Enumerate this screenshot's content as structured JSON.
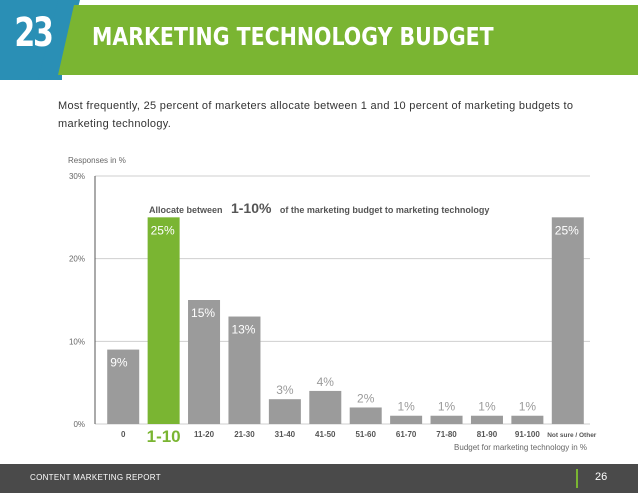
{
  "header": {
    "number": "23",
    "title": "MARKETING TECHNOLOGY BUDGET"
  },
  "subtitle": "Most frequently, 25 percent of marketers allocate between 1 and 10 percent of marketing budgets to marketing technology.",
  "colors": {
    "accent_green": "#7ab532",
    "accent_blue": "#2a8fb5",
    "bar_gray": "#9b9b9b"
  },
  "chart_data": {
    "type": "bar",
    "ylabel": "Responses in %",
    "xlabel": "Budget for marketing technology in %",
    "ylim": [
      0,
      30
    ],
    "yticks": [
      0,
      10,
      20,
      30
    ],
    "ytick_labels": [
      "0%",
      "10%",
      "20%",
      "30%"
    ],
    "categories": [
      "0",
      "1-10",
      "11-20",
      "21-30",
      "31-40",
      "41-50",
      "51-60",
      "61-70",
      "71-80",
      "81-90",
      "91-100",
      "Not sure / Other"
    ],
    "values": [
      9,
      25,
      15,
      13,
      3,
      4,
      2,
      1,
      1,
      1,
      1,
      25
    ],
    "value_labels": [
      "9%",
      "25%",
      "15%",
      "13%",
      "3%",
      "4%",
      "2%",
      "1%",
      "1%",
      "1%",
      "1%",
      "25%"
    ],
    "highlight_index": 1,
    "annotation": {
      "prefix": "Allocate between",
      "emphasis": "1-10%",
      "suffix": "of the marketing budget to marketing technology"
    }
  },
  "footer": {
    "left": "CONTENT MARKETING REPORT",
    "page": "26"
  }
}
